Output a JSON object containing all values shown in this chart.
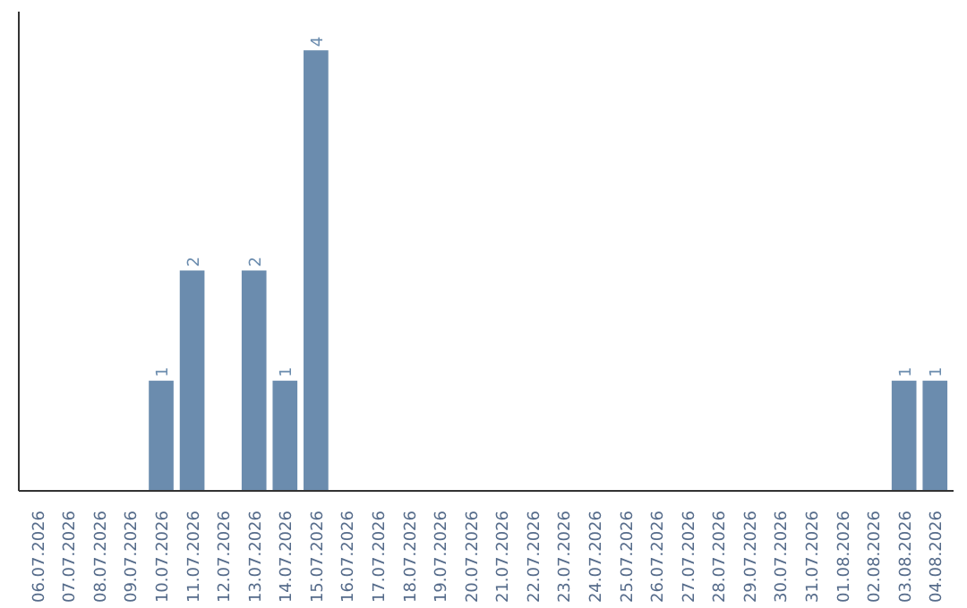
{
  "chart_data": {
    "type": "bar",
    "categories": [
      "06.07.2026",
      "07.07.2026",
      "08.07.2026",
      "09.07.2026",
      "10.07.2026",
      "11.07.2026",
      "12.07.2026",
      "13.07.2026",
      "14.07.2026",
      "15.07.2026",
      "16.07.2026",
      "17.07.2026",
      "18.07.2026",
      "19.07.2026",
      "20.07.2026",
      "21.07.2026",
      "22.07.2026",
      "23.07.2026",
      "24.07.2026",
      "25.07.2026",
      "26.07.2026",
      "27.07.2026",
      "28.07.2026",
      "29.07.2026",
      "30.07.2026",
      "31.07.2026",
      "01.08.2026",
      "02.08.2026",
      "03.08.2026",
      "04.08.2026"
    ],
    "values": [
      0,
      0,
      0,
      0,
      1,
      2,
      0,
      2,
      1,
      4,
      0,
      0,
      0,
      0,
      0,
      0,
      0,
      0,
      0,
      0,
      0,
      0,
      0,
      0,
      0,
      0,
      0,
      0,
      1,
      1
    ],
    "value_labels": [
      null,
      null,
      null,
      null,
      "1",
      "2",
      null,
      "2",
      "1",
      "4",
      null,
      null,
      null,
      null,
      null,
      null,
      null,
      null,
      null,
      null,
      null,
      null,
      null,
      null,
      null,
      null,
      null,
      null,
      "1",
      "1"
    ],
    "color": "#6b8cae",
    "ylim": [
      0,
      4.35
    ],
    "tick_labels": "x",
    "grid": false
  }
}
